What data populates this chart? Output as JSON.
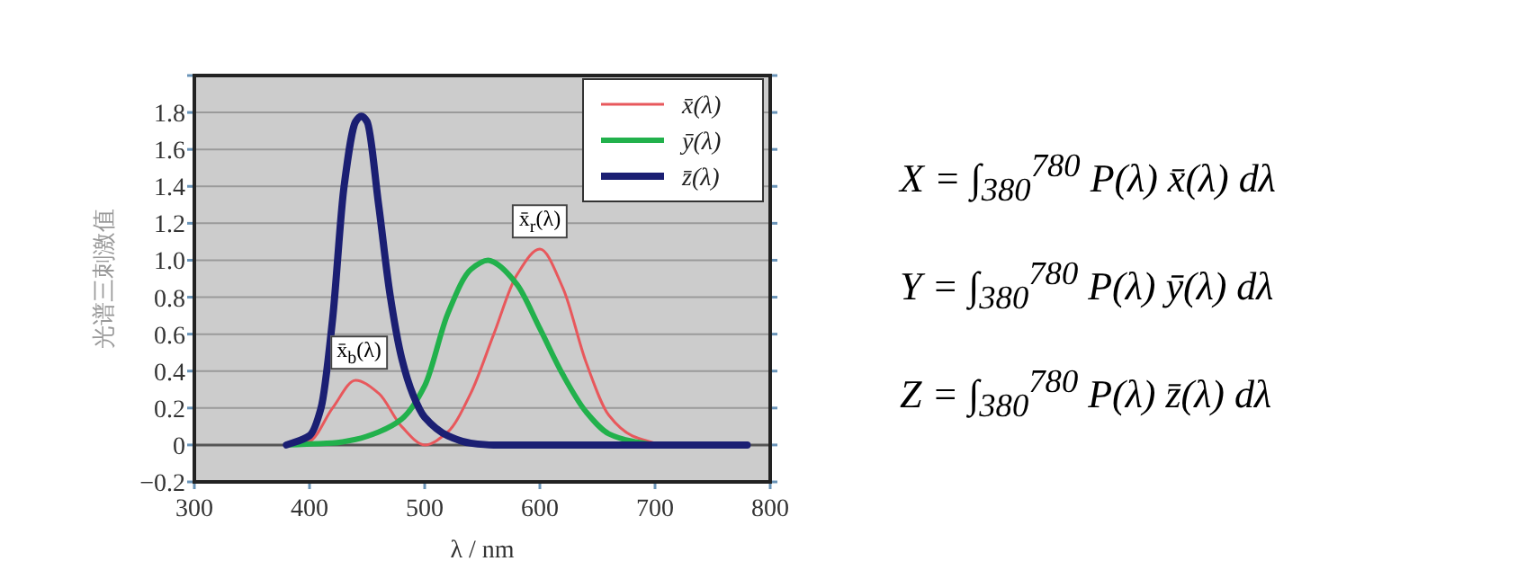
{
  "chart_data": {
    "type": "line",
    "xlabel": "λ / nm",
    "ylabel": "光谱三刺激值",
    "xlim": [
      300,
      800
    ],
    "xticks": [
      300,
      400,
      500,
      600,
      700,
      800
    ],
    "ylim": [
      -0.2,
      2.0
    ],
    "yticks": [
      -0.2,
      0,
      0.2,
      0.4,
      0.6,
      0.8,
      {
        "value": 1.0,
        "label": "1.0"
      },
      1.2,
      1.4,
      1.6,
      1.8,
      {
        "value": 2.0,
        "label": null
      }
    ],
    "grid": "y",
    "legend": "top right",
    "marker": "none",
    "line_style": "solid",
    "ref_lines": [
      {
        "axis": "y",
        "value": 0,
        "color": "#555555"
      }
    ],
    "series": [
      {
        "name": "x̄(λ)",
        "color": "#e8585c",
        "x": [
          380,
          400,
          420,
          440,
          460,
          480,
          500,
          520,
          540,
          560,
          580,
          600,
          620,
          640,
          660,
          680,
          700
        ],
        "values": [
          0,
          0.02,
          0.2,
          0.35,
          0.28,
          0.1,
          0.0,
          0.07,
          0.28,
          0.6,
          0.92,
          1.06,
          0.85,
          0.45,
          0.16,
          0.05,
          0.01
        ]
      },
      {
        "name": "ȳ(λ)",
        "color": "#22b14c",
        "x": [
          380,
          420,
          440,
          460,
          480,
          500,
          520,
          540,
          555,
          560,
          580,
          600,
          620,
          640,
          660,
          680,
          700
        ],
        "values": [
          0,
          0.01,
          0.03,
          0.07,
          0.14,
          0.32,
          0.71,
          0.95,
          1.0,
          0.99,
          0.87,
          0.63,
          0.38,
          0.18,
          0.06,
          0.02,
          0
        ]
      },
      {
        "name": "z̄(λ)",
        "color": "#1b1f73",
        "x": [
          380,
          400,
          410,
          420,
          430,
          440,
          445,
          450,
          460,
          470,
          480,
          490,
          500,
          520,
          540,
          560,
          780
        ],
        "values": [
          0,
          0.05,
          0.2,
          0.68,
          1.4,
          1.75,
          1.78,
          1.75,
          1.3,
          0.81,
          0.47,
          0.27,
          0.15,
          0.05,
          0.01,
          0,
          0
        ]
      }
    ],
    "annotations": [
      {
        "text": "x̄$_{r}$(λ)",
        "x": 600,
        "y": 1.06
      },
      {
        "text": "x̄$_{b}$(λ)",
        "x": 443,
        "y": 0.35
      },
      "X = ∫$_{380}$$^{780}$ P(λ) x̄(λ) dλ",
      "Y = ∫$_{380}$$^{780}$ P(λ) ȳ(λ) dλ",
      "Z = ∫$_{380}$$^{780}$ P(λ) z̄(λ) dλ"
    ]
  }
}
